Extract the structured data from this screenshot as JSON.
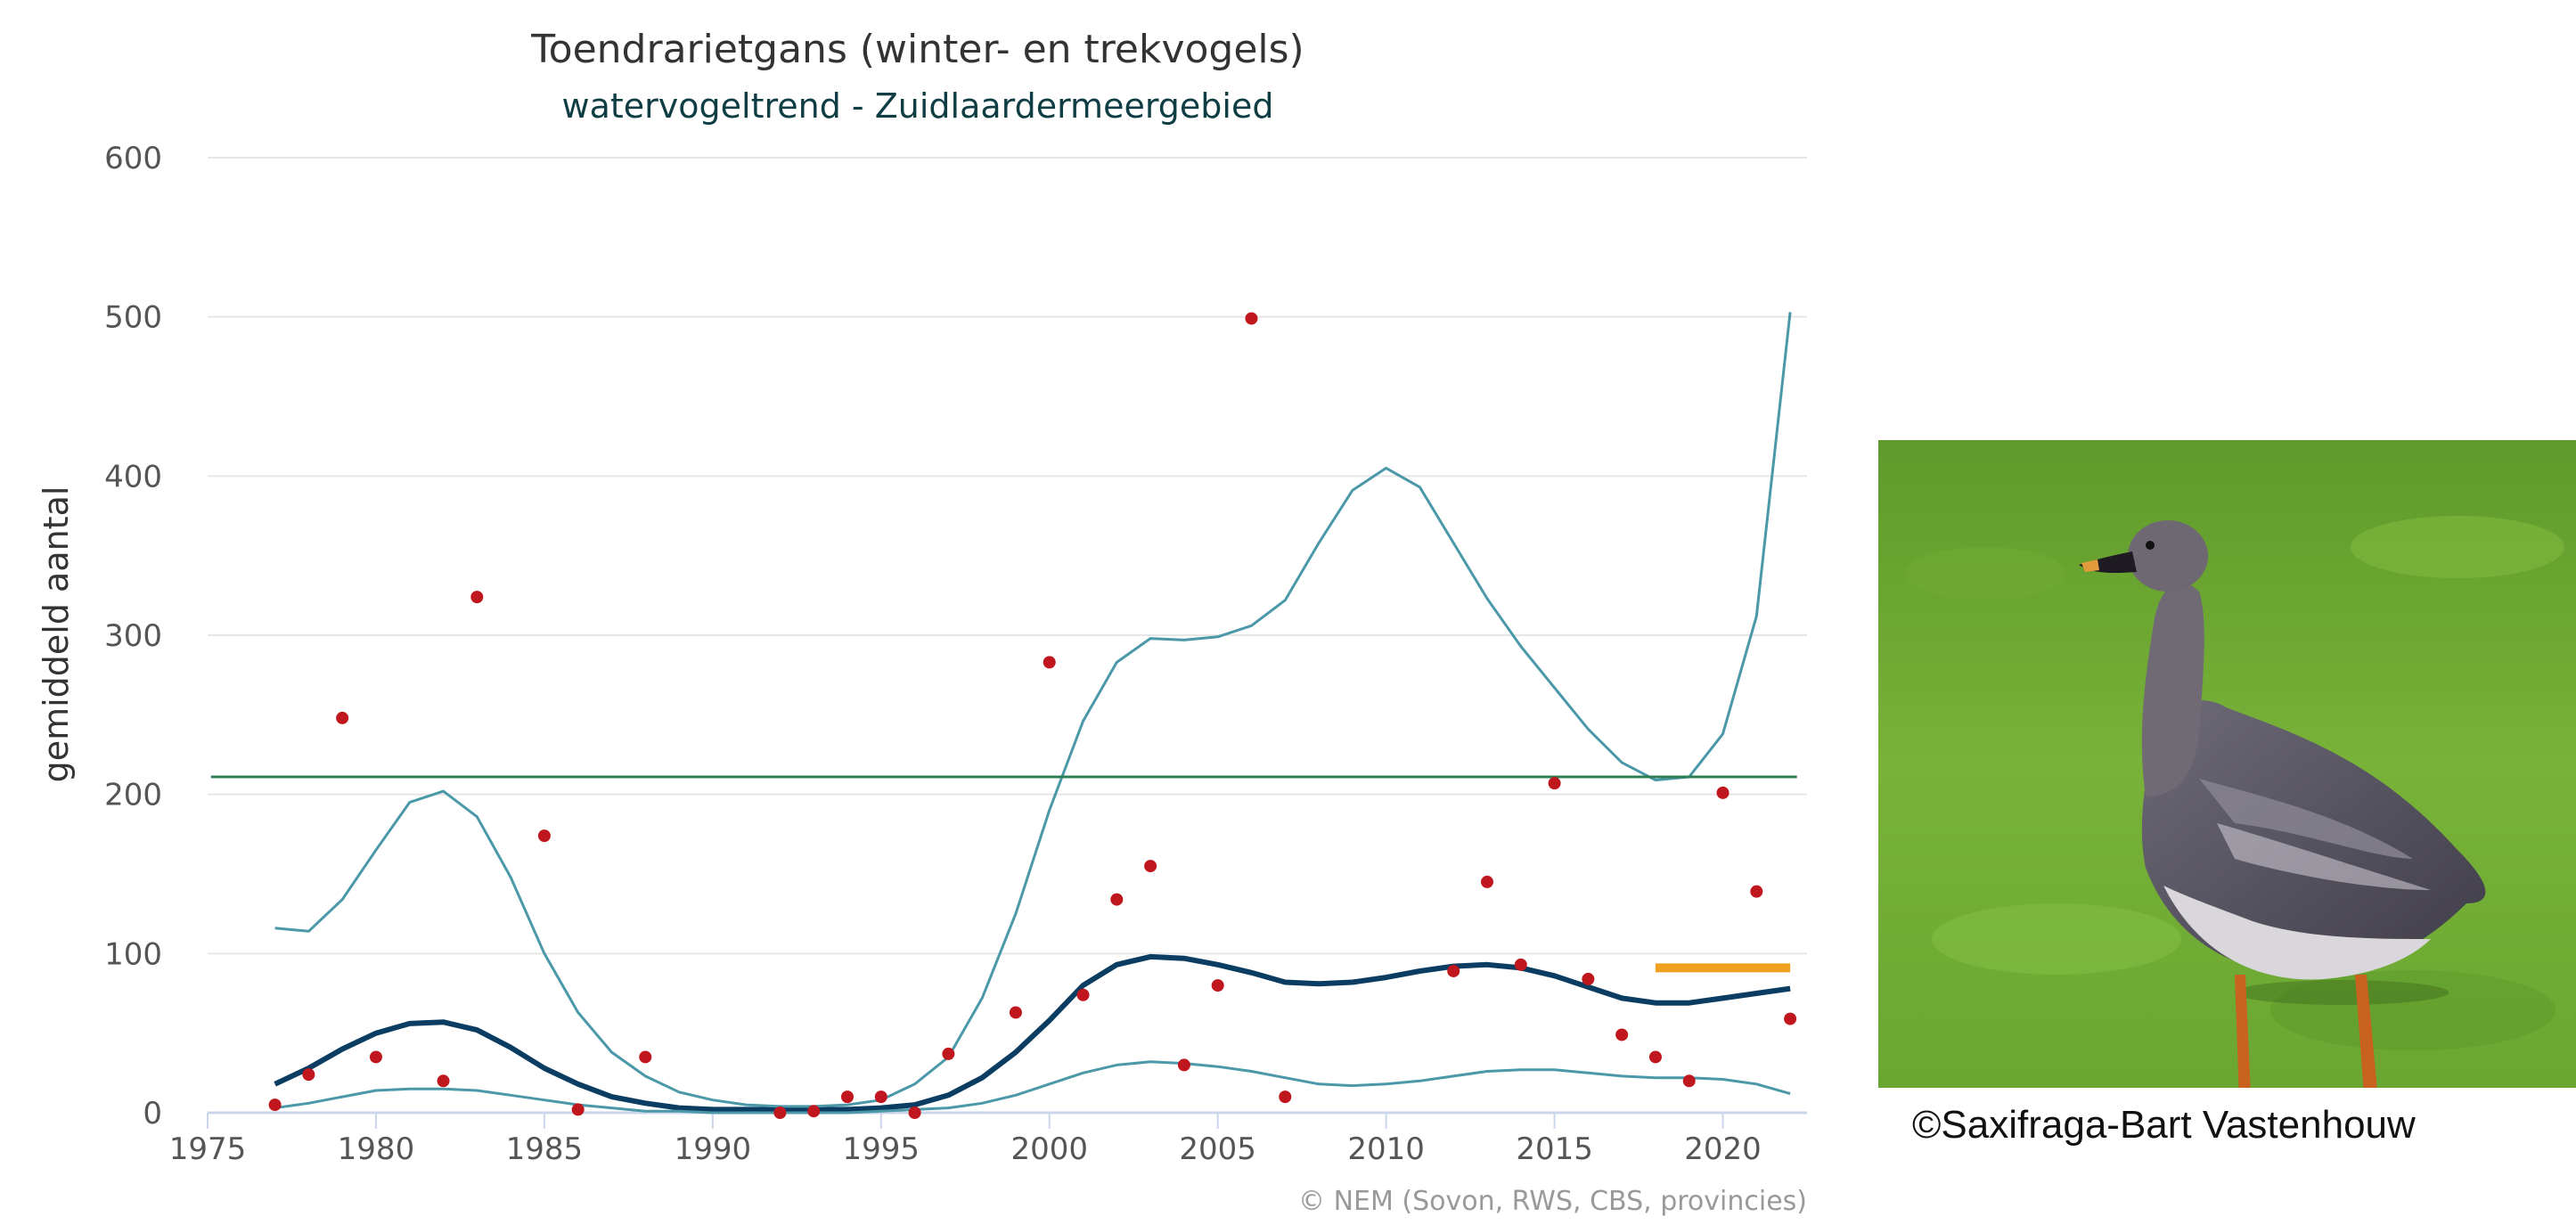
{
  "chart_data": {
    "type": "line",
    "title": "Toendrarietgans (winter- en trekvogels)",
    "subtitle": "watervogeltrend - Zuidlaardermeergebied",
    "xlabel": "",
    "ylabel": "gemiddeld aantal",
    "xlim": [
      1975,
      2022.5
    ],
    "ylim": [
      0,
      600
    ],
    "xticks": [
      1975,
      1980,
      1985,
      1990,
      1995,
      2000,
      2005,
      2010,
      2015,
      2020
    ],
    "yticks": [
      0,
      100,
      200,
      300,
      400,
      500,
      600
    ],
    "grid": true,
    "credits": "© NEM (Sovon, RWS, CBS, provincies)",
    "series": [
      {
        "name": "index",
        "color": "#0b3d62",
        "x": [
          1977,
          1978,
          1979,
          1980,
          1981,
          1982,
          1983,
          1984,
          1985,
          1986,
          1987,
          1988,
          1989,
          1990,
          1991,
          1992,
          1993,
          1994,
          1995,
          1996,
          1997,
          1998,
          1999,
          2000,
          2001,
          2002,
          2003,
          2004,
          2005,
          2006,
          2007,
          2008,
          2009,
          2010,
          2011,
          2012,
          2013,
          2014,
          2015,
          2016,
          2017,
          2018,
          2019,
          2020,
          2021,
          2022
        ],
        "values": [
          18,
          28,
          40,
          50,
          56,
          57,
          52,
          41,
          28,
          18,
          10,
          6,
          3,
          2,
          2,
          2,
          2,
          2,
          3,
          5,
          11,
          22,
          38,
          58,
          80,
          93,
          98,
          97,
          93,
          88,
          82,
          81,
          82,
          85,
          89,
          92,
          93,
          91,
          86,
          79,
          72,
          69,
          69,
          72,
          75,
          78
        ]
      },
      {
        "name": "bovengrens",
        "color": "#4a98a8",
        "x": [
          1977,
          1978,
          1979,
          1980,
          1981,
          1982,
          1983,
          1984,
          1985,
          1986,
          1987,
          1988,
          1989,
          1990,
          1991,
          1992,
          1993,
          1994,
          1995,
          1996,
          1997,
          1998,
          1999,
          2000,
          2001,
          2002,
          2003,
          2004,
          2005,
          2006,
          2007,
          2008,
          2009,
          2010,
          2011,
          2012,
          2013,
          2014,
          2015,
          2016,
          2017,
          2018,
          2019,
          2020,
          2021,
          2022
        ],
        "values": [
          116,
          114,
          134,
          165,
          195,
          202,
          186,
          148,
          100,
          63,
          38,
          23,
          13,
          8,
          5,
          4,
          4,
          5,
          8,
          18,
          35,
          72,
          125,
          190,
          246,
          283,
          298,
          297,
          299,
          306,
          322,
          358,
          391,
          405,
          393,
          358,
          323,
          293,
          267,
          241,
          220,
          209,
          211,
          238,
          312,
          503
        ]
      },
      {
        "name": "ondergrens",
        "color": "#4a98a8",
        "x": [
          1977,
          1978,
          1979,
          1980,
          1981,
          1982,
          1983,
          1984,
          1985,
          1986,
          1987,
          1988,
          1989,
          1990,
          1991,
          1992,
          1993,
          1994,
          1995,
          1996,
          1997,
          1998,
          1999,
          2000,
          2001,
          2002,
          2003,
          2004,
          2005,
          2006,
          2007,
          2008,
          2009,
          2010,
          2011,
          2012,
          2013,
          2014,
          2015,
          2016,
          2017,
          2018,
          2019,
          2020,
          2021,
          2022
        ],
        "values": [
          3,
          6,
          10,
          14,
          15,
          15,
          14,
          11,
          8,
          5,
          3,
          1,
          1,
          0,
          0,
          0,
          0,
          0,
          1,
          2,
          3,
          6,
          11,
          18,
          25,
          30,
          32,
          31,
          29,
          26,
          22,
          18,
          17,
          18,
          20,
          23,
          26,
          27,
          27,
          25,
          23,
          22,
          22,
          21,
          18,
          12
        ]
      },
      {
        "name": "referentie",
        "color": "#2e7d55",
        "x": [
          1975.1,
          2022.2
        ],
        "values": [
          211,
          211
        ]
      },
      {
        "name": "doel",
        "color": "#f0a020",
        "x": [
          2018,
          2022
        ],
        "values": [
          91,
          91
        ]
      },
      {
        "name": "getelde aantallen",
        "type": "scatter",
        "color": "#c0161e",
        "x": [
          1977,
          1978,
          1979,
          1980,
          1982,
          1983,
          1985,
          1986,
          1988,
          1992,
          1993,
          1994,
          1995,
          1996,
          1997,
          1999,
          2000,
          2001,
          2002,
          2003,
          2004,
          2005,
          2006,
          2007,
          2012,
          2013,
          2014,
          2015,
          2016,
          2017,
          2018,
          2019,
          2020,
          2021,
          2022
        ],
        "values": [
          5,
          24,
          248,
          35,
          20,
          324,
          174,
          2,
          35,
          0,
          1,
          10,
          10,
          0,
          37,
          63,
          283,
          74,
          134,
          155,
          30,
          80,
          499,
          10,
          89,
          145,
          93,
          207,
          84,
          49,
          35,
          20,
          201,
          139,
          59
        ]
      }
    ]
  },
  "photo": {
    "subject": "goose",
    "caption": "©Saxifraga-Bart Vastenhouw"
  }
}
